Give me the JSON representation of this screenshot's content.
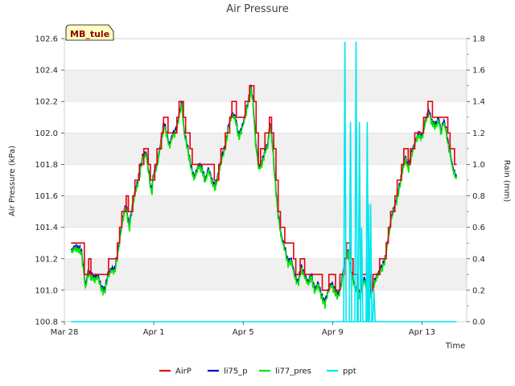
{
  "chart_data": {
    "type": "line",
    "title": "Air Pressure",
    "site_badge": "MB_tule",
    "xlabel": "Time",
    "ylabel": "Air Pressure (kPa)",
    "y2label": "Rain (mm)",
    "xlim": [
      0,
      18
    ],
    "ylim": [
      100.8,
      102.6
    ],
    "y2lim": [
      0.0,
      1.8
    ],
    "xticks": [
      {
        "pos": 0,
        "label": "Mar 28"
      },
      {
        "pos": 4,
        "label": "Apr 1"
      },
      {
        "pos": 8,
        "label": "Apr 5"
      },
      {
        "pos": 12,
        "label": "Apr 9"
      },
      {
        "pos": 16,
        "label": "Apr 13"
      }
    ],
    "yticks": [
      "100.8",
      "101.0",
      "101.2",
      "101.4",
      "101.6",
      "101.8",
      "102.0",
      "102.2",
      "102.4",
      "102.6"
    ],
    "y2ticks": [
      "0.0",
      "0.2",
      "0.4",
      "0.6",
      "0.8",
      "1.0",
      "1.2",
      "1.4",
      "1.6",
      "1.8"
    ],
    "colors": {
      "AirP": "#e8000b",
      "li75_p": "#0000cc",
      "li77_pres": "#00e600",
      "ppt": "#00e5ee",
      "band": "#f0f0f0",
      "grid": "#dcdcdc",
      "badge_bg": "#ffffc0"
    },
    "pressure_anchor_points": [
      [
        0.3,
        101.25
      ],
      [
        0.45,
        101.28
      ],
      [
        0.6,
        101.27
      ],
      [
        0.75,
        101.26
      ],
      [
        0.85,
        101.15
      ],
      [
        0.95,
        101.02
      ],
      [
        1.05,
        101.12
      ],
      [
        1.2,
        101.1
      ],
      [
        1.35,
        101.08
      ],
      [
        1.5,
        101.1
      ],
      [
        1.65,
        101.02
      ],
      [
        1.8,
        101.0
      ],
      [
        1.95,
        101.1
      ],
      [
        2.1,
        101.14
      ],
      [
        2.25,
        101.13
      ],
      [
        2.4,
        101.25
      ],
      [
        2.6,
        101.45
      ],
      [
        2.75,
        101.55
      ],
      [
        2.9,
        101.4
      ],
      [
        3.0,
        101.5
      ],
      [
        3.15,
        101.62
      ],
      [
        3.3,
        101.7
      ],
      [
        3.5,
        101.85
      ],
      [
        3.65,
        101.88
      ],
      [
        3.75,
        101.78
      ],
      [
        3.9,
        101.62
      ],
      [
        4.0,
        101.75
      ],
      [
        4.15,
        101.8
      ],
      [
        4.3,
        101.93
      ],
      [
        4.45,
        102.07
      ],
      [
        4.55,
        102.02
      ],
      [
        4.7,
        101.92
      ],
      [
        4.85,
        102.0
      ],
      [
        5.0,
        102.02
      ],
      [
        5.15,
        102.13
      ],
      [
        5.25,
        102.2
      ],
      [
        5.35,
        102.02
      ],
      [
        5.5,
        101.92
      ],
      [
        5.65,
        101.8
      ],
      [
        5.8,
        101.72
      ],
      [
        6.0,
        101.8
      ],
      [
        6.15,
        101.78
      ],
      [
        6.3,
        101.7
      ],
      [
        6.45,
        101.78
      ],
      [
        6.6,
        101.7
      ],
      [
        6.75,
        101.66
      ],
      [
        6.9,
        101.75
      ],
      [
        7.05,
        101.85
      ],
      [
        7.2,
        101.92
      ],
      [
        7.35,
        102.05
      ],
      [
        7.5,
        102.13
      ],
      [
        7.65,
        102.1
      ],
      [
        7.8,
        101.98
      ],
      [
        7.95,
        102.04
      ],
      [
        8.1,
        102.12
      ],
      [
        8.25,
        102.22
      ],
      [
        8.35,
        102.3
      ],
      [
        8.45,
        102.18
      ],
      [
        8.55,
        101.95
      ],
      [
        8.7,
        101.78
      ],
      [
        8.85,
        101.82
      ],
      [
        9.0,
        101.9
      ],
      [
        9.1,
        101.93
      ],
      [
        9.2,
        102.07
      ],
      [
        9.3,
        101.95
      ],
      [
        9.4,
        101.75
      ],
      [
        9.55,
        101.5
      ],
      [
        9.7,
        101.35
      ],
      [
        9.85,
        101.28
      ],
      [
        10.0,
        101.18
      ],
      [
        10.15,
        101.2
      ],
      [
        10.3,
        101.1
      ],
      [
        10.45,
        101.05
      ],
      [
        10.6,
        101.15
      ],
      [
        10.75,
        101.1
      ],
      [
        10.9,
        101.05
      ],
      [
        11.05,
        101.1
      ],
      [
        11.2,
        101.0
      ],
      [
        11.35,
        101.05
      ],
      [
        11.5,
        100.97
      ],
      [
        11.65,
        100.92
      ],
      [
        11.8,
        101.0
      ],
      [
        11.95,
        101.05
      ],
      [
        12.1,
        101.0
      ],
      [
        12.25,
        100.97
      ],
      [
        12.4,
        101.05
      ],
      [
        12.55,
        101.2
      ],
      [
        12.7,
        101.25
      ],
      [
        12.8,
        101.15
      ],
      [
        12.95,
        101.05
      ],
      [
        13.1,
        101.0
      ],
      [
        13.25,
        100.98
      ],
      [
        13.4,
        101.08
      ],
      [
        13.55,
        101.02
      ],
      [
        13.7,
        100.98
      ],
      [
        13.85,
        101.05
      ],
      [
        14.0,
        101.1
      ],
      [
        14.2,
        101.15
      ],
      [
        14.35,
        101.2
      ],
      [
        14.5,
        101.35
      ],
      [
        14.65,
        101.48
      ],
      [
        14.8,
        101.55
      ],
      [
        14.95,
        101.63
      ],
      [
        15.1,
        101.75
      ],
      [
        15.25,
        101.85
      ],
      [
        15.4,
        101.78
      ],
      [
        15.55,
        101.88
      ],
      [
        15.7,
        101.95
      ],
      [
        15.85,
        102.0
      ],
      [
        16.0,
        101.98
      ],
      [
        16.15,
        102.08
      ],
      [
        16.3,
        102.15
      ],
      [
        16.45,
        102.07
      ],
      [
        16.6,
        102.05
      ],
      [
        16.75,
        102.1
      ],
      [
        16.85,
        102.0
      ],
      [
        16.95,
        102.08
      ],
      [
        17.05,
        102.05
      ],
      [
        17.15,
        101.95
      ],
      [
        17.25,
        101.88
      ],
      [
        17.35,
        101.8
      ],
      [
        17.45,
        101.75
      ],
      [
        17.55,
        101.72
      ]
    ],
    "series": [
      {
        "name": "AirP",
        "axis": "left",
        "y_offset": 0.05,
        "step": 0.1
      },
      {
        "name": "li75_p",
        "axis": "left",
        "y_offset": 0.0
      },
      {
        "name": "li77_pres",
        "axis": "left",
        "y_offset": -0.015
      },
      {
        "name": "ppt",
        "axis": "right",
        "baseline": 0.0,
        "spikes": [
          [
            12.55,
            1.78
          ],
          [
            12.8,
            1.27
          ],
          [
            13.05,
            1.78
          ],
          [
            13.2,
            1.27
          ],
          [
            13.55,
            1.27
          ],
          [
            13.6,
            0.75
          ],
          [
            13.7,
            0.75
          ],
          [
            13.3,
            0.6
          ],
          [
            13.85,
            0.2
          ]
        ],
        "baseline_range": [
          0.3,
          17.55
        ]
      }
    ],
    "legend": [
      "AirP",
      "li75_p",
      "li77_pres",
      "ppt"
    ],
    "legend_position": "bottom-center"
  }
}
